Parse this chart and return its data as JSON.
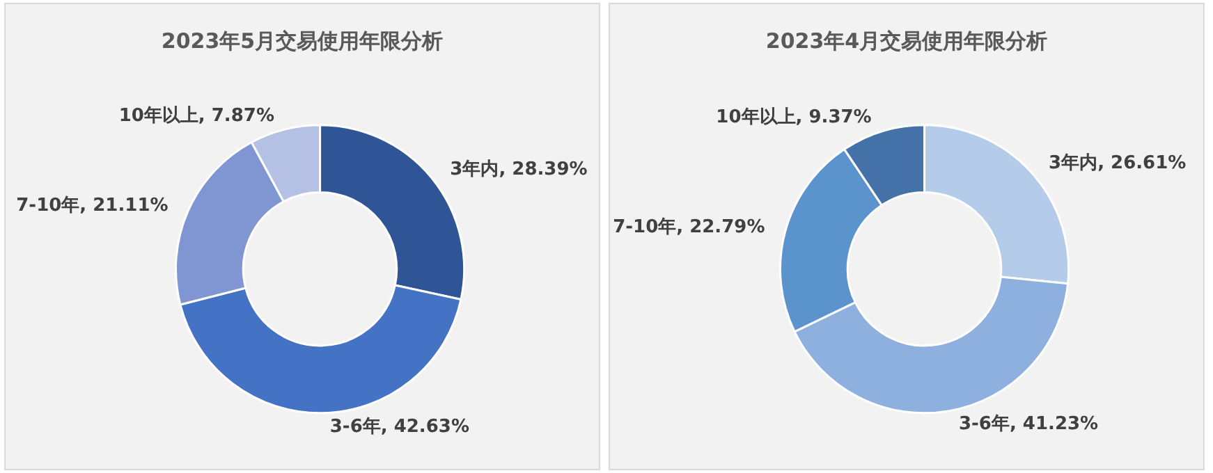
{
  "chart_data": [
    {
      "type": "donut",
      "title": "2023年5月交易使用年限分析",
      "categories": [
        "3年内",
        "3-6年",
        "7-10年",
        "10年以上"
      ],
      "values": [
        28.39,
        42.63,
        21.11,
        7.87
      ],
      "value_labels": [
        "28.39%",
        "42.63%",
        "21.11%",
        "7.87%"
      ],
      "colors": [
        "#2f5597",
        "#4472c4",
        "#7f96d2",
        "#b4c0e4"
      ],
      "legend": false
    },
    {
      "type": "donut",
      "title": "2023年4月交易使用年限分析",
      "categories": [
        "3年内",
        "3-6年",
        "7-10年",
        "10年以上"
      ],
      "values": [
        26.61,
        41.23,
        22.79,
        9.37
      ],
      "value_labels": [
        "26.61%",
        "41.23%",
        "22.79%",
        "9.37%"
      ],
      "colors": [
        "#b4cbe9",
        "#8db0de",
        "#5b93cc",
        "#4472a8"
      ],
      "legend": false
    }
  ]
}
